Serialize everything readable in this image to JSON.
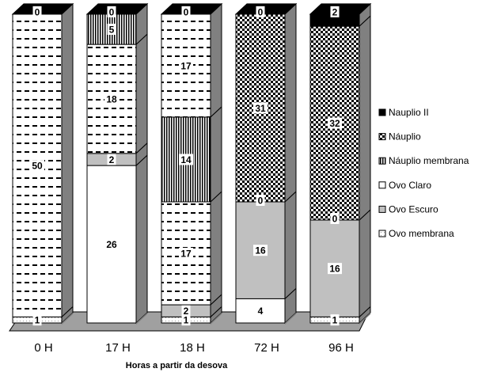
{
  "chart_data": {
    "type": "bar",
    "stacked": true,
    "three_d": true,
    "categories": [
      "0 H",
      "17 H",
      "18 H",
      "72 H",
      "96 H"
    ],
    "xlabel": "Horas a partir da desova",
    "ylabel": "",
    "title": "",
    "ylim": [
      0,
      52
    ],
    "grid": false,
    "legend": {
      "position": "right"
    },
    "series": [
      {
        "name": "Ovo membrana",
        "values": [
          1,
          0,
          1,
          0,
          1
        ],
        "pattern": "white-dotted"
      },
      {
        "name": "Ovo Escuro",
        "values": [
          0,
          0,
          2,
          0,
          0
        ],
        "pattern": "gray-solid"
      },
      {
        "name": "Ovo Claro",
        "values": [
          0,
          26,
          17,
          4,
          0
        ],
        "pattern": "white-solid"
      },
      {
        "name": "Náuplio membrana",
        "values": [
          50,
          2,
          14,
          16,
          16
        ],
        "pattern": "vertical-stripes"
      },
      {
        "name": "Náuplio",
        "values": [
          0,
          18,
          17,
          0,
          0
        ],
        "pattern": "checker"
      },
      {
        "name": "Nauplio II",
        "values": [
          0,
          5,
          0,
          31,
          32
        ],
        "pattern": "black-solid"
      }
    ],
    "segments": [
      [
        {
          "value": 1,
          "pattern": "white-dotted"
        },
        {
          "value": 50,
          "pattern": "dash"
        },
        {
          "value": 0,
          "pattern": "black-solid"
        }
      ],
      [
        {
          "value": 26,
          "pattern": "white-solid"
        },
        {
          "value": 2,
          "pattern": "gray-solid"
        },
        {
          "value": 18,
          "pattern": "dash"
        },
        {
          "value": 5,
          "pattern": "vertical-stripes"
        },
        {
          "value": 0,
          "pattern": "black-solid"
        }
      ],
      [
        {
          "value": 1,
          "pattern": "white-dotted"
        },
        {
          "value": 2,
          "pattern": "gray-solid"
        },
        {
          "value": 17,
          "pattern": "dash"
        },
        {
          "value": 14,
          "pattern": "vertical-stripes"
        },
        {
          "value": 17,
          "pattern": "dash"
        },
        {
          "value": 0,
          "pattern": "black-solid"
        }
      ],
      [
        {
          "value": 4,
          "pattern": "white-solid"
        },
        {
          "value": 16,
          "pattern": "gray-solid"
        },
        {
          "value": 0,
          "pattern": "dash"
        },
        {
          "value": 31,
          "pattern": "checker"
        },
        {
          "value": 0,
          "pattern": "black-solid"
        }
      ],
      [
        {
          "value": 1,
          "pattern": "white-dotted"
        },
        {
          "value": 16,
          "pattern": "gray-solid"
        },
        {
          "value": 0,
          "pattern": "dash"
        },
        {
          "value": 32,
          "pattern": "checker"
        },
        {
          "value": 2,
          "pattern": "black-solid"
        }
      ]
    ],
    "legend_entries": [
      {
        "label": "Nauplio II",
        "pattern": "black-solid"
      },
      {
        "label": "Náuplio",
        "pattern": "checker"
      },
      {
        "label": "Náuplio membrana",
        "pattern": "vertical-stripes"
      },
      {
        "label": "Ovo Claro",
        "pattern": "white-solid"
      },
      {
        "label": "Ovo Escuro",
        "pattern": "gray-solid"
      },
      {
        "label": "Ovo membrana",
        "pattern": "white-dotted"
      }
    ],
    "colors": {
      "gray": "#c0c0c0",
      "floor": "#a0a0a0",
      "side": "#808080",
      "black": "#000000",
      "white": "#ffffff"
    }
  }
}
